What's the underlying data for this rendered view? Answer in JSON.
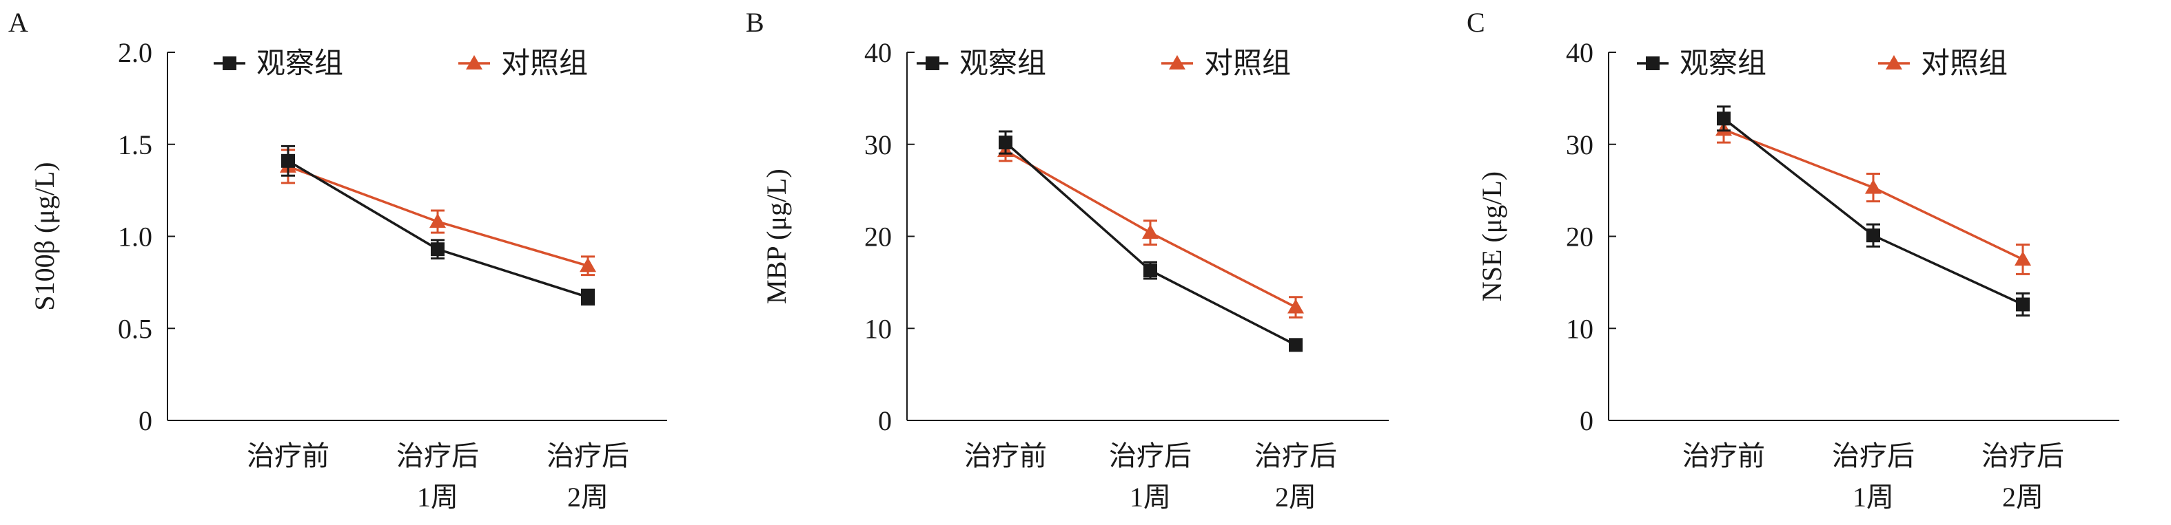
{
  "chart_data": [
    {
      "type": "line",
      "panel_label": "A",
      "ylabel": "S100β (μg/L)",
      "categories": [
        [
          "治疗前"
        ],
        [
          "治疗后",
          "1周"
        ],
        [
          "治疗后",
          "2周"
        ]
      ],
      "ylim": [
        0,
        2.0
      ],
      "yticks": [
        0,
        0.5,
        1.0,
        1.5,
        2.0
      ],
      "ytick_labels": [
        "0",
        "0.5",
        "1.0",
        "1.5",
        "2.0"
      ],
      "series": [
        {
          "name": "观察组",
          "marker": "square",
          "color": "#1a1a1a",
          "values": [
            1.41,
            0.93,
            0.67
          ],
          "errors": [
            0.08,
            0.05,
            0.04
          ]
        },
        {
          "name": "对照组",
          "marker": "triangle",
          "color": "#d9512c",
          "values": [
            1.38,
            1.08,
            0.84
          ],
          "errors": [
            0.09,
            0.06,
            0.05
          ]
        }
      ]
    },
    {
      "type": "line",
      "panel_label": "B",
      "ylabel": "MBP (μg/L)",
      "categories": [
        [
          "治疗前"
        ],
        [
          "治疗后",
          "1周"
        ],
        [
          "治疗后",
          "2周"
        ]
      ],
      "ylim": [
        0,
        40
      ],
      "yticks": [
        0,
        10,
        20,
        30,
        40
      ],
      "ytick_labels": [
        "0",
        "10",
        "20",
        "30",
        "40"
      ],
      "series": [
        {
          "name": "观察组",
          "marker": "square",
          "color": "#1a1a1a",
          "values": [
            30.2,
            16.3,
            8.2
          ],
          "errors": [
            1.2,
            0.9,
            0.5
          ]
        },
        {
          "name": "对照组",
          "marker": "triangle",
          "color": "#d9512c",
          "values": [
            29.3,
            20.4,
            12.3
          ],
          "errors": [
            1.1,
            1.3,
            1.1
          ]
        }
      ]
    },
    {
      "type": "line",
      "panel_label": "C",
      "ylabel": "NSE (μg/L)",
      "categories": [
        [
          "治疗前"
        ],
        [
          "治疗后",
          "1周"
        ],
        [
          "治疗后",
          "2周"
        ]
      ],
      "ylim": [
        0,
        40
      ],
      "yticks": [
        0,
        10,
        20,
        30,
        40
      ],
      "ytick_labels": [
        "0",
        "10",
        "20",
        "30",
        "40"
      ],
      "series": [
        {
          "name": "观察组",
          "marker": "square",
          "color": "#1a1a1a",
          "values": [
            32.8,
            20.1,
            12.6
          ],
          "errors": [
            1.3,
            1.2,
            1.2
          ]
        },
        {
          "name": "对照组",
          "marker": "triangle",
          "color": "#d9512c",
          "values": [
            31.6,
            25.3,
            17.5
          ],
          "errors": [
            1.4,
            1.5,
            1.6
          ]
        }
      ]
    }
  ],
  "legend_placement": "top",
  "grid": false
}
